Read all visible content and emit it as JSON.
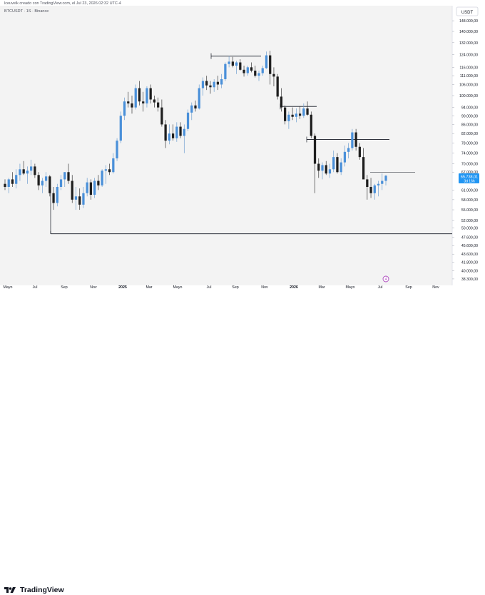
{
  "caption": "lceuvelk creado con TradingView.com, el Jul 23, 2026 02:32 UTC-4",
  "symbol_line": "BTCUSDT · 1S · Binance",
  "currency_button": "USDT",
  "brand": "TradingView",
  "event_marker": "4",
  "price_tag": {
    "value": "65.738,01",
    "sub": "3d 16h",
    "color": "#2196f3"
  },
  "colors": {
    "up": "#4a90d9",
    "down": "#1e1e1e",
    "background": "#f3f3f3",
    "line": "#131722"
  },
  "chart_data": {
    "type": "candlestick",
    "title": "BTCUSDT · 1S · Binance",
    "y_axis_ticks": [
      "148.000,00",
      "140.000,00",
      "132.000,00",
      "124.000,00",
      "116.000,00",
      "111.000,00",
      "106.000,00",
      "100.000,00",
      "94.000,00",
      "90.000,00",
      "86.000,00",
      "82.000,00",
      "78.000,00",
      "74.000,00",
      "70.000,00",
      "67.000,00",
      "61.000,00",
      "58.000,00",
      "55.000,00",
      "52.000,00",
      "50.000,00",
      "47.600,00",
      "45.600,00",
      "43.600,00",
      "41.800,00",
      "40.000,00",
      "38.300,00"
    ],
    "x_axis_ticks": [
      "Mayo",
      "Jul",
      "Sep",
      "Nov",
      "2025",
      "Mar",
      "Mayo",
      "Jul",
      "Sep",
      "Nov",
      "2026",
      "Mar",
      "Mayo",
      "Jul",
      "Sep",
      "Nov"
    ],
    "ylim": [
      37300,
      152000
    ],
    "y_scale": "log",
    "series": [
      {
        "name": "BTCUSDT",
        "ohlc": [
          [
            63000,
            64500,
            61000,
            62000
          ],
          [
            62000,
            65000,
            60000,
            64500
          ],
          [
            64500,
            67000,
            62000,
            63000
          ],
          [
            63000,
            68000,
            61500,
            66000
          ],
          [
            66000,
            70000,
            64000,
            68000
          ],
          [
            68000,
            71000,
            66000,
            66500
          ],
          [
            66500,
            69000,
            63000,
            67500
          ],
          [
            67500,
            71500,
            66000,
            69000
          ],
          [
            69000,
            70000,
            65000,
            66000
          ],
          [
            66000,
            67000,
            61000,
            62500
          ],
          [
            62500,
            65000,
            60000,
            64000
          ],
          [
            64000,
            67000,
            62000,
            65500
          ],
          [
            65500,
            66000,
            59000,
            60000
          ],
          [
            60000,
            62000,
            55000,
            57000
          ],
          [
            57000,
            63000,
            56000,
            62000
          ],
          [
            62000,
            66000,
            61000,
            64500
          ],
          [
            64500,
            67000,
            62000,
            67000
          ],
          [
            67000,
            70000,
            63000,
            64000
          ],
          [
            64000,
            66000,
            57000,
            58000
          ],
          [
            58000,
            62000,
            55000,
            59000
          ],
          [
            59000,
            61500,
            55000,
            56500
          ],
          [
            56500,
            62000,
            55500,
            60000
          ],
          [
            60000,
            65000,
            59000,
            63500
          ],
          [
            63500,
            64500,
            58000,
            59500
          ],
          [
            59500,
            65000,
            58500,
            64000
          ],
          [
            64000,
            66000,
            61000,
            62500
          ],
          [
            62500,
            68000,
            62000,
            67500
          ],
          [
            67500,
            69500,
            63000,
            68000
          ],
          [
            68000,
            70000,
            66000,
            67000
          ],
          [
            67000,
            74000,
            66500,
            72000
          ],
          [
            72000,
            80000,
            71000,
            79000
          ],
          [
            79000,
            92000,
            78000,
            90000
          ],
          [
            90000,
            99000,
            88000,
            97000
          ],
          [
            97000,
            102000,
            94000,
            96000
          ],
          [
            96000,
            100000,
            91000,
            94000
          ],
          [
            94000,
            106000,
            93000,
            104000
          ],
          [
            104000,
            108000,
            95000,
            97000
          ],
          [
            97000,
            102000,
            92000,
            96000
          ],
          [
            96000,
            105000,
            94000,
            104000
          ],
          [
            104000,
            106000,
            96000,
            98000
          ],
          [
            98000,
            100000,
            94000,
            96500
          ],
          [
            96500,
            99000,
            92000,
            94000
          ],
          [
            94000,
            98000,
            85000,
            86000
          ],
          [
            86000,
            88000,
            76000,
            79000
          ],
          [
            79000,
            86000,
            77500,
            82000
          ],
          [
            82000,
            86000,
            79000,
            80000
          ],
          [
            80000,
            87000,
            78500,
            85000
          ],
          [
            85000,
            87000,
            80000,
            81000
          ],
          [
            81000,
            86000,
            74000,
            84000
          ],
          [
            84000,
            93000,
            83000,
            91500
          ],
          [
            91500,
            96500,
            88000,
            95000
          ],
          [
            95000,
            97500,
            92000,
            93500
          ],
          [
            93500,
            106000,
            93000,
            104000
          ],
          [
            104000,
            110000,
            100000,
            108000
          ],
          [
            108000,
            111000,
            103000,
            105500
          ],
          [
            105500,
            108000,
            101000,
            104500
          ],
          [
            104500,
            109000,
            102000,
            107500
          ],
          [
            107500,
            111000,
            103000,
            106000
          ],
          [
            106000,
            112000,
            104000,
            109000
          ],
          [
            109000,
            119000,
            108000,
            118000
          ],
          [
            118000,
            123000,
            116000,
            119500
          ],
          [
            119500,
            122500,
            116000,
            117000
          ],
          [
            117000,
            120000,
            112000,
            119000
          ],
          [
            119000,
            121000,
            114000,
            114500
          ],
          [
            114500,
            117000,
            110500,
            112500
          ],
          [
            112500,
            117000,
            111000,
            116000
          ],
          [
            116000,
            119000,
            113000,
            114000
          ],
          [
            114000,
            117000,
            110000,
            111000
          ],
          [
            111000,
            114000,
            108000,
            112500
          ],
          [
            112500,
            117000,
            111000,
            115500
          ],
          [
            115500,
            126000,
            115000,
            123500
          ],
          [
            123500,
            126500,
            106000,
            112000
          ],
          [
            112000,
            116000,
            105000,
            110500
          ],
          [
            110500,
            112000,
            98000,
            99500
          ],
          [
            99500,
            104000,
            92000,
            94000
          ],
          [
            94000,
            95000,
            86000,
            87500
          ],
          [
            87500,
            92000,
            84000,
            90500
          ],
          [
            90500,
            94000,
            88000,
            89500
          ],
          [
            89500,
            93500,
            87000,
            91000
          ],
          [
            91000,
            94500,
            88500,
            90000
          ],
          [
            90000,
            96000,
            89000,
            93500
          ],
          [
            93500,
            97000,
            90000,
            90500
          ],
          [
            90500,
            92000,
            80000,
            81000
          ],
          [
            81000,
            82000,
            60000,
            70000
          ],
          [
            70000,
            72000,
            65000,
            67500
          ],
          [
            67500,
            70500,
            64500,
            69500
          ],
          [
            69500,
            71000,
            66000,
            66500
          ],
          [
            66500,
            70000,
            65000,
            68000
          ],
          [
            68000,
            75000,
            67000,
            72500
          ],
          [
            72500,
            74000,
            66500,
            67000
          ],
          [
            67000,
            72000,
            66000,
            70500
          ],
          [
            70500,
            77000,
            69000,
            74500
          ],
          [
            74500,
            78000,
            72000,
            76000
          ],
          [
            76000,
            84000,
            75000,
            82500
          ],
          [
            82500,
            84000,
            75000,
            76500
          ],
          [
            76500,
            78000,
            71500,
            72500
          ],
          [
            72500,
            76000,
            65000,
            64500
          ],
          [
            64500,
            66000,
            58000,
            62000
          ],
          [
            62000,
            65000,
            58500,
            60000
          ],
          [
            60000,
            63000,
            58000,
            62500
          ],
          [
            62500,
            64000,
            59000,
            63000
          ],
          [
            63000,
            66500,
            61000,
            64000
          ],
          [
            64000,
            66000,
            62500,
            65738
          ]
        ]
      }
    ],
    "horizontal_levels": [
      {
        "value": 123000,
        "label": ""
      },
      {
        "value": 94500,
        "label": ""
      },
      {
        "value": 79500,
        "label": ""
      },
      {
        "value": 67000,
        "label": ""
      },
      {
        "value": 48500,
        "label": ""
      }
    ],
    "grid": false,
    "legend": "none"
  }
}
